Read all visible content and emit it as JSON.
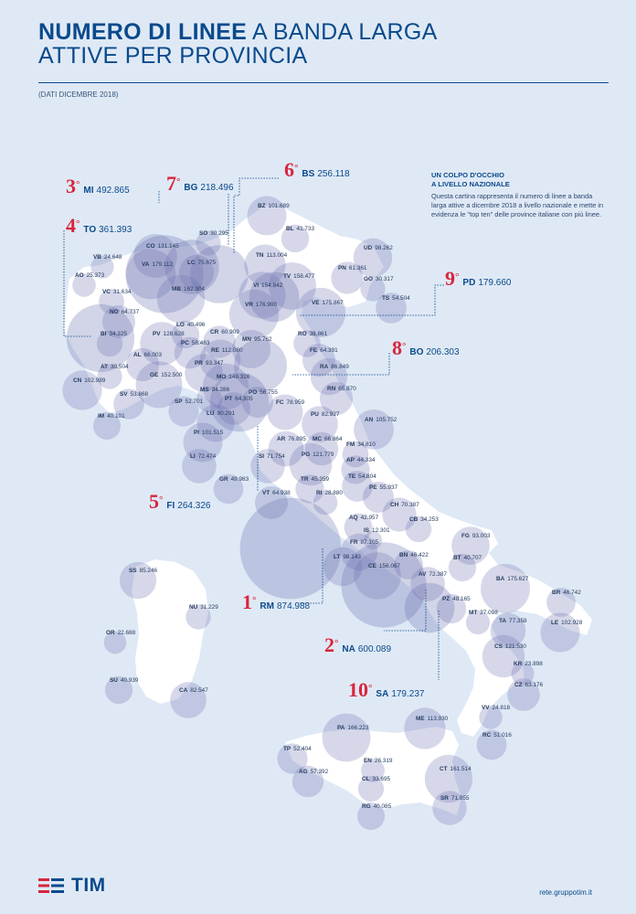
{
  "header": {
    "title_bold": "NUMERO DI LINEE",
    "title_rest": "A BANDA LARGA",
    "title_line2": "ATTIVE PER PROVINCIA",
    "subtitle": "(DATI DICEMBRE 2018)"
  },
  "info": {
    "heading1": "UN COLPO D'OCCHIO",
    "heading2": "A LIVELLO NAZIONALE",
    "body": "Questa cartina rappresenta il numero di linee a banda larga attive a dicembre 2018 a livello nazionale e mette in evidenza le \"top ten\" delle province italiane con più linee."
  },
  "top_ten": [
    {
      "rank": "1",
      "code": "RM",
      "value": "874.988"
    },
    {
      "rank": "2",
      "code": "NA",
      "value": "600.089"
    },
    {
      "rank": "3",
      "code": "MI",
      "value": "492.865"
    },
    {
      "rank": "4",
      "code": "TO",
      "value": "361.393"
    },
    {
      "rank": "5",
      "code": "FI",
      "value": "264.326"
    },
    {
      "rank": "6",
      "code": "BS",
      "value": "256.118"
    },
    {
      "rank": "7",
      "code": "BG",
      "value": "218.496"
    },
    {
      "rank": "8",
      "code": "BO",
      "value": "206.303"
    },
    {
      "rank": "9",
      "code": "PD",
      "value": "179.660"
    },
    {
      "rank": "10",
      "code": "SA",
      "value": "179.237"
    }
  ],
  "provinces": [
    {
      "code": "BZ",
      "value": "101.689"
    },
    {
      "code": "BL",
      "value": "41.733"
    },
    {
      "code": "SO",
      "value": "30.295"
    },
    {
      "code": "CO",
      "value": "131.145"
    },
    {
      "code": "UD",
      "value": "98.262"
    },
    {
      "code": "VB",
      "value": "24.648"
    },
    {
      "code": "VA",
      "value": "179.112"
    },
    {
      "code": "LC",
      "value": "75.675"
    },
    {
      "code": "TN",
      "value": "113.004"
    },
    {
      "code": "PN",
      "value": "61.361"
    },
    {
      "code": "AO",
      "value": "25.373"
    },
    {
      "code": "TV",
      "value": "158.477"
    },
    {
      "code": "GO",
      "value": "30.317"
    },
    {
      "code": "VC",
      "value": "31.634"
    },
    {
      "code": "MB",
      "value": "162.304"
    },
    {
      "code": "VI",
      "value": "154.842"
    },
    {
      "code": "TS",
      "value": "54.504"
    },
    {
      "code": "VE",
      "value": "175.867"
    },
    {
      "code": "VR",
      "value": "176.900"
    },
    {
      "code": "NO",
      "value": "64.737"
    },
    {
      "code": "LO",
      "value": "40.496"
    },
    {
      "code": "BI",
      "value": "34.325"
    },
    {
      "code": "PV",
      "value": "128.628"
    },
    {
      "code": "CR",
      "value": "60.909"
    },
    {
      "code": "RO",
      "value": "38.861"
    },
    {
      "code": "MN",
      "value": "95.762"
    },
    {
      "code": "PC",
      "value": "58.463"
    },
    {
      "code": "FE",
      "value": "64.391"
    },
    {
      "code": "AL",
      "value": "66.003"
    },
    {
      "code": "RE",
      "value": "112.080"
    },
    {
      "code": "AT",
      "value": "30.504"
    },
    {
      "code": "PR",
      "value": "93.347"
    },
    {
      "code": "RA",
      "value": "86.849"
    },
    {
      "code": "GE",
      "value": "152.500"
    },
    {
      "code": "MO",
      "value": "148.326"
    },
    {
      "code": "CN",
      "value": "102.989"
    },
    {
      "code": "MS",
      "value": "34.286"
    },
    {
      "code": "RN",
      "value": "65.870"
    },
    {
      "code": "SV",
      "value": "53.868"
    },
    {
      "code": "PO",
      "value": "56.755"
    },
    {
      "code": "SP",
      "value": "52.701"
    },
    {
      "code": "PT",
      "value": "64.305"
    },
    {
      "code": "FC",
      "value": "78.959"
    },
    {
      "code": "LU",
      "value": "90.291"
    },
    {
      "code": "PU",
      "value": "82.927"
    },
    {
      "code": "IM",
      "value": "40.101"
    },
    {
      "code": "AN",
      "value": "105.752"
    },
    {
      "code": "PI",
      "value": "101.515"
    },
    {
      "code": "AR",
      "value": "76.895"
    },
    {
      "code": "MC",
      "value": "66.864"
    },
    {
      "code": "FM",
      "value": "34.810"
    },
    {
      "code": "LI",
      "value": "72.474"
    },
    {
      "code": "SI",
      "value": "71.754"
    },
    {
      "code": "PG",
      "value": "121.779"
    },
    {
      "code": "AP",
      "value": "44.334"
    },
    {
      "code": "GR",
      "value": "49.983"
    },
    {
      "code": "TE",
      "value": "54.804"
    },
    {
      "code": "TR",
      "value": "45.359"
    },
    {
      "code": "PE",
      "value": "55.937"
    },
    {
      "code": "VT",
      "value": "64.938"
    },
    {
      "code": "RI",
      "value": "28.880"
    },
    {
      "code": "CH",
      "value": "70.387"
    },
    {
      "code": "AQ",
      "value": "42.957"
    },
    {
      "code": "CB",
      "value": "34.253"
    },
    {
      "code": "IS",
      "value": "12.301"
    },
    {
      "code": "FG",
      "value": "93.003"
    },
    {
      "code": "FR",
      "value": "87.105"
    },
    {
      "code": "LT",
      "value": "98.143"
    },
    {
      "code": "BN",
      "value": "46.422"
    },
    {
      "code": "BT",
      "value": "40.707"
    },
    {
      "code": "CE",
      "value": "156.067"
    },
    {
      "code": "SS",
      "value": "85.246"
    },
    {
      "code": "AV",
      "value": "72.387"
    },
    {
      "code": "BA",
      "value": "175.627"
    },
    {
      "code": "BR",
      "value": "46.742"
    },
    {
      "code": "PZ",
      "value": "48.165"
    },
    {
      "code": "NU",
      "value": "31.229"
    },
    {
      "code": "MT",
      "value": "27.098"
    },
    {
      "code": "TA",
      "value": "77.358"
    },
    {
      "code": "LE",
      "value": "102.928"
    },
    {
      "code": "OR",
      "value": "22.688"
    },
    {
      "code": "CS",
      "value": "121.530"
    },
    {
      "code": "KR",
      "value": "23.898"
    },
    {
      "code": "SU",
      "value": "40.939"
    },
    {
      "code": "CZ",
      "value": "63.176"
    },
    {
      "code": "CA",
      "value": "82.547"
    },
    {
      "code": "VV",
      "value": "24.818"
    },
    {
      "code": "ME",
      "value": "113.930"
    },
    {
      "code": "RC",
      "value": "51.016"
    },
    {
      "code": "PA",
      "value": "166.223"
    },
    {
      "code": "TP",
      "value": "52.404"
    },
    {
      "code": "EN",
      "value": "26.319"
    },
    {
      "code": "AG",
      "value": "57.392"
    },
    {
      "code": "CT",
      "value": "161.514"
    },
    {
      "code": "CL",
      "value": "33.695"
    },
    {
      "code": "SR",
      "value": "71.055"
    },
    {
      "code": "RG",
      "value": "40.085"
    }
  ],
  "footer": {
    "brand": "TIM",
    "url": "rete.gruppotim.it"
  },
  "colors": {
    "accent": "#d7263d",
    "brand": "#0a4a8c",
    "land": "#ffffff",
    "bubble": "#6a6fb0"
  }
}
